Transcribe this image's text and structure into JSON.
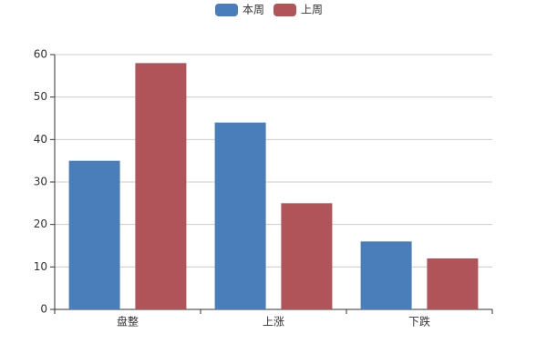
{
  "chart_data": {
    "type": "bar",
    "categories": [
      "盘整",
      "上涨",
      "下跌"
    ],
    "series": [
      {
        "name": "本周",
        "color": "#4a7ebb",
        "values": [
          35,
          44,
          16
        ]
      },
      {
        "name": "上周",
        "color": "#b0545a",
        "values": [
          58,
          25,
          12
        ]
      }
    ],
    "ylim": [
      0,
      60
    ],
    "yticks": [
      0,
      10,
      20,
      30,
      40,
      50,
      60
    ],
    "grid": true,
    "legend": "top"
  }
}
